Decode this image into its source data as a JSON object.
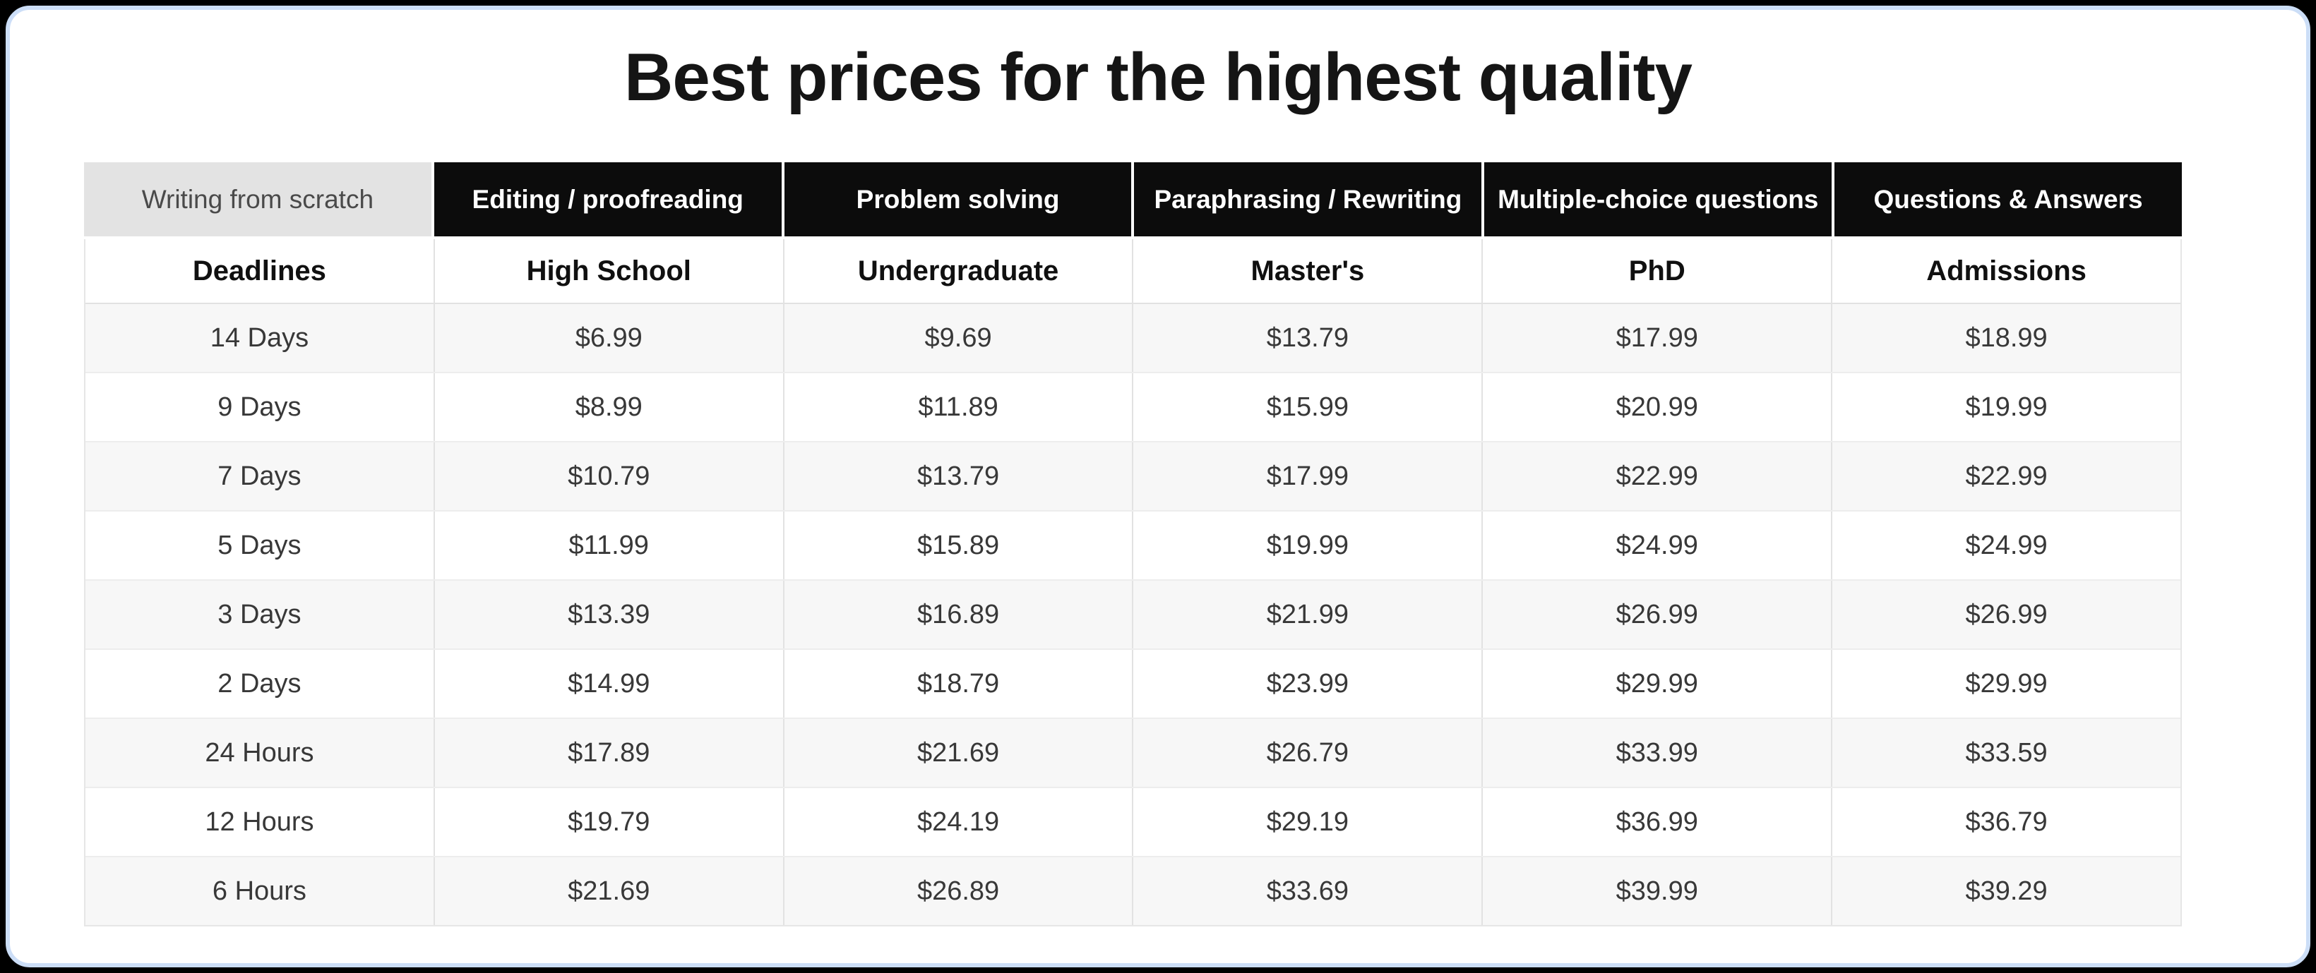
{
  "page": {
    "title": "Best prices for the highest quality"
  },
  "colors": {
    "card_border": "#ccdef7",
    "tab_background": "#0c0c0c",
    "tab_text": "#ffffff",
    "active_tab_background": "#e3e3e3",
    "active_tab_text": "#4a4a4a",
    "row_alt_background": "#f7f7f7",
    "grid_line": "#e2e2e2"
  },
  "tabs": {
    "active_index": 0,
    "items": [
      {
        "label": "Writing from scratch",
        "active": true
      },
      {
        "label": "Editing / proofreading",
        "active": false
      },
      {
        "label": "Problem solving",
        "active": false
      },
      {
        "label": "Paraphrasing / Rewriting",
        "active": false
      },
      {
        "label": "Multiple-choice questions",
        "active": false
      },
      {
        "label": "Questions & Answers",
        "active": false
      }
    ]
  },
  "pricing_table": {
    "columns": [
      "Deadlines",
      "High School",
      "Undergraduate",
      "Master's",
      "PhD",
      "Admissions"
    ],
    "rows": [
      {
        "deadline": "14 Days",
        "prices": [
          "$6.99",
          "$9.69",
          "$13.79",
          "$17.99",
          "$18.99"
        ]
      },
      {
        "deadline": "9 Days",
        "prices": [
          "$8.99",
          "$11.89",
          "$15.99",
          "$20.99",
          "$19.99"
        ]
      },
      {
        "deadline": "7 Days",
        "prices": [
          "$10.79",
          "$13.79",
          "$17.99",
          "$22.99",
          "$22.99"
        ]
      },
      {
        "deadline": "5 Days",
        "prices": [
          "$11.99",
          "$15.89",
          "$19.99",
          "$24.99",
          "$24.99"
        ]
      },
      {
        "deadline": "3 Days",
        "prices": [
          "$13.39",
          "$16.89",
          "$21.99",
          "$26.99",
          "$26.99"
        ]
      },
      {
        "deadline": "2 Days",
        "prices": [
          "$14.99",
          "$18.79",
          "$23.99",
          "$29.99",
          "$29.99"
        ]
      },
      {
        "deadline": "24 Hours",
        "prices": [
          "$17.89",
          "$21.69",
          "$26.79",
          "$33.99",
          "$33.59"
        ]
      },
      {
        "deadline": "12 Hours",
        "prices": [
          "$19.79",
          "$24.19",
          "$29.19",
          "$36.99",
          "$36.79"
        ]
      },
      {
        "deadline": "6 Hours",
        "prices": [
          "$21.69",
          "$26.89",
          "$33.69",
          "$39.99",
          "$39.29"
        ]
      }
    ]
  }
}
